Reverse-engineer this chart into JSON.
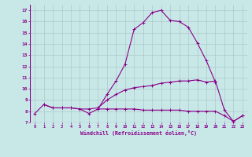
{
  "xlabel": "Windchill (Refroidissement éolien,°C)",
  "x": [
    0,
    1,
    2,
    3,
    4,
    5,
    6,
    7,
    8,
    9,
    10,
    11,
    12,
    13,
    14,
    15,
    16,
    17,
    18,
    19,
    20,
    21,
    22,
    23
  ],
  "line1": [
    7.8,
    8.6,
    8.3,
    8.3,
    8.3,
    8.2,
    7.8,
    8.2,
    9.5,
    10.7,
    12.2,
    15.3,
    15.9,
    16.8,
    17.0,
    16.1,
    16.0,
    15.5,
    14.1,
    12.5,
    10.6,
    null,
    null,
    null
  ],
  "line2": [
    null,
    8.6,
    8.3,
    8.3,
    8.3,
    8.2,
    8.2,
    8.3,
    9.0,
    9.5,
    9.9,
    10.1,
    10.2,
    10.3,
    10.5,
    10.6,
    10.7,
    10.7,
    10.8,
    10.6,
    10.7,
    8.1,
    7.1,
    7.6
  ],
  "line3": [
    null,
    null,
    null,
    null,
    null,
    null,
    null,
    8.2,
    8.2,
    8.2,
    8.2,
    8.2,
    8.1,
    8.1,
    8.1,
    8.1,
    8.1,
    8.0,
    8.0,
    8.0,
    8.0,
    7.6,
    7.1,
    7.6
  ],
  "line_color": "#880088",
  "bg_color": "#c8e8e8",
  "grid_color": "#b0c8c8",
  "ylim": [
    7,
    17.5
  ],
  "yticks": [
    7,
    8,
    9,
    10,
    11,
    12,
    13,
    14,
    15,
    16,
    17
  ],
  "xticks": [
    0,
    1,
    2,
    3,
    4,
    5,
    6,
    7,
    8,
    9,
    10,
    11,
    12,
    13,
    14,
    15,
    16,
    17,
    18,
    19,
    20,
    21,
    22,
    23
  ]
}
